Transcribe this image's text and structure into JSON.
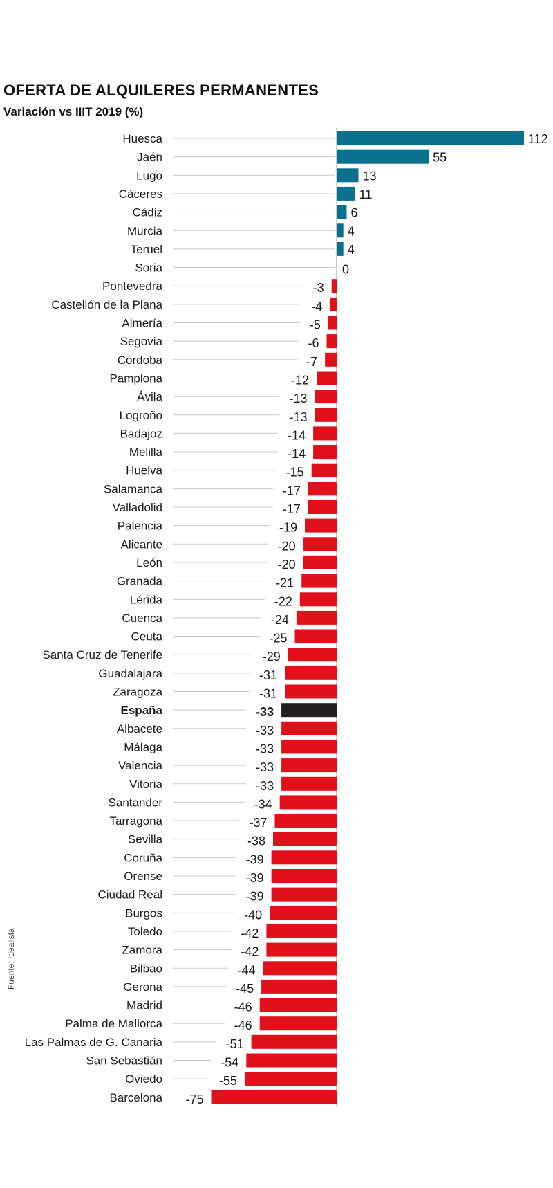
{
  "chart_data": {
    "type": "bar",
    "orientation": "horizontal",
    "title": "OFERTA DE ALQUILERES PERMANENTES",
    "subtitle": "Variación vs IIIT 2019 (%)",
    "source": "Fuente: Idealista",
    "colors": {
      "positive": "#0b6f8e",
      "negative": "#e0111b",
      "highlight": "#231f20",
      "leader": "#c8c8c8",
      "axis": "#9a9a9a"
    },
    "highlight_category": "España",
    "categories": [
      "Huesca",
      "Jaén",
      "Lugo",
      "Cáceres",
      "Cádiz",
      "Murcia",
      "Teruel",
      "Soria",
      "Pontevedra",
      "Castellón de la Plana",
      "Almería",
      "Segovia",
      "Córdoba",
      "Pamplona",
      "Ávila",
      "Logroño",
      "Badajoz",
      "Melilla",
      "Huelva",
      "Salamanca",
      "Valladolid",
      "Palencia",
      "Alicante",
      "León",
      "Granada",
      "Lérida",
      "Cuenca",
      "Ceuta",
      "Santa Cruz de Tenerife",
      "Guadalajara",
      "Zaragoza",
      "España",
      "Albacete",
      "Málaga",
      "Valencia",
      "Vitoria",
      "Santander",
      "Tarragona",
      "Sevilla",
      "Coruña",
      "Orense",
      "Ciudad Real",
      "Burgos",
      "Toledo",
      "Zamora",
      "Bilbao",
      "Gerona",
      "Madrid",
      "Palma de Mallorca",
      "Las Palmas de G. Canaria",
      "San Sebastián",
      "Oviedo",
      "Barcelona"
    ],
    "values": [
      112,
      55,
      13,
      11,
      6,
      4,
      4,
      0,
      -3,
      -4,
      -5,
      -6,
      -7,
      -12,
      -13,
      -13,
      -14,
      -14,
      -15,
      -17,
      -17,
      -19,
      -20,
      -20,
      -21,
      -22,
      -24,
      -25,
      -29,
      -31,
      -31,
      -33,
      -33,
      -33,
      -33,
      -33,
      -34,
      -37,
      -38,
      -39,
      -39,
      -39,
      -40,
      -42,
      -42,
      -44,
      -45,
      -46,
      -46,
      -51,
      -54,
      -55,
      -75
    ],
    "value_labels": [
      "112",
      "55",
      "13",
      "11",
      "6",
      "4",
      "4",
      "0",
      "-3",
      "-4",
      "-5",
      "-6",
      "-7",
      "-12",
      "-13",
      "-13",
      "-14",
      "-14",
      "-15",
      "-17",
      "-17",
      "-19",
      "-20",
      "-20",
      "-21",
      "-22",
      "-24",
      "-25",
      "-29",
      "-31",
      "-31",
      "-33",
      "-33",
      "-33",
      "-33",
      "-33",
      "-34",
      "-37",
      "-38",
      "-39",
      "-39",
      "-39",
      "-40",
      "-42",
      "-42",
      "-44",
      "-45",
      "-46",
      "-46",
      "-51",
      "-54",
      "-55",
      "-75"
    ]
  }
}
